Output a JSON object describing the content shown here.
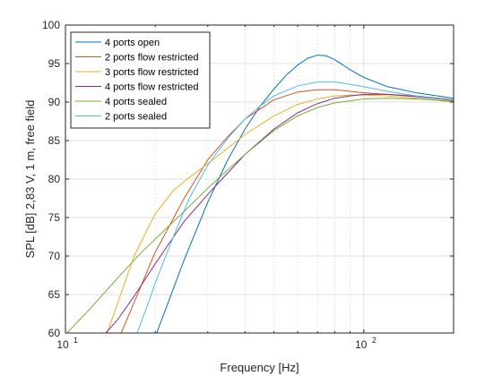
{
  "chart_data": {
    "type": "line",
    "title": "",
    "xlabel": "Frequency [Hz]",
    "ylabel": "SPL [dB] 2,83 V, 1 m, free field",
    "x_scale": "log",
    "xlim": [
      10,
      200
    ],
    "ylim": [
      60,
      100
    ],
    "x_ticks": [
      {
        "value": 10,
        "base": "10",
        "exp": "1"
      },
      {
        "value": 100,
        "base": "10",
        "exp": "2"
      }
    ],
    "y_ticks": [
      "60",
      "65",
      "70",
      "75",
      "80",
      "85",
      "90",
      "95",
      "100"
    ],
    "grid": "on (log minor grid on x)",
    "legend_position": "top-left",
    "series": [
      {
        "name": "4 ports open",
        "color": "#0072BD",
        "x": [
          20,
          25,
          30,
          35,
          40,
          45,
          50,
          55,
          60,
          65,
          70,
          75,
          80,
          90,
          100,
          120,
          150,
          200
        ],
        "y": [
          59.5,
          69.5,
          77.0,
          82.5,
          86.5,
          89.5,
          91.7,
          93.5,
          94.8,
          95.7,
          96.1,
          96.0,
          95.5,
          94.2,
          93.2,
          92.0,
          91.2,
          90.5
        ]
      },
      {
        "name": "2 ports flow restricted",
        "color": "#D95319",
        "x": [
          15,
          17,
          20,
          25,
          30,
          35,
          40,
          50,
          60,
          70,
          80,
          90,
          100,
          120,
          150,
          200
        ],
        "y": [
          59.0,
          64.0,
          70.5,
          77.5,
          82.5,
          85.5,
          87.8,
          90.3,
          91.3,
          91.6,
          91.6,
          91.4,
          91.2,
          91.0,
          90.8,
          90.3
        ]
      },
      {
        "name": "3 ports flow restricted",
        "color": "#EDB120",
        "x": [
          13.5,
          15,
          17,
          20,
          23,
          26,
          30,
          35,
          40,
          50,
          60,
          70,
          80,
          90,
          100,
          120,
          150,
          200
        ],
        "y": [
          59.0,
          64.0,
          70.0,
          75.5,
          78.5,
          80.2,
          82.0,
          84.0,
          85.8,
          88.2,
          89.7,
          90.4,
          90.8,
          90.9,
          90.9,
          90.8,
          90.5,
          90.0
        ]
      },
      {
        "name": "4 ports flow restricted",
        "color": "#7E2F8E",
        "x": [
          13.5,
          15,
          17,
          20,
          25,
          30,
          35,
          40,
          50,
          60,
          70,
          80,
          90,
          100,
          120,
          150,
          200
        ],
        "y": [
          59.8,
          61.8,
          64.8,
          69.0,
          74.5,
          78.0,
          80.8,
          83.2,
          86.5,
          88.6,
          89.8,
          90.5,
          90.8,
          91.0,
          91.0,
          90.7,
          90.2
        ]
      },
      {
        "name": "4 ports sealed",
        "color": "#77AC30",
        "x": [
          10,
          12,
          15,
          18,
          20,
          25,
          30,
          35,
          40,
          50,
          60,
          70,
          80,
          100,
          120,
          150,
          200
        ],
        "y": [
          59.8,
          63.0,
          67.2,
          70.5,
          72.2,
          75.8,
          78.8,
          81.2,
          83.2,
          86.3,
          88.2,
          89.3,
          89.9,
          90.4,
          90.5,
          90.4,
          90.1
        ]
      },
      {
        "name": "2 ports sealed",
        "color": "#4DBEEE",
        "x": [
          17,
          19,
          20,
          23,
          26,
          30,
          35,
          40,
          45,
          50,
          60,
          70,
          80,
          90,
          100,
          120,
          150,
          200
        ],
        "y": [
          59.0,
          64.0,
          66.5,
          72.5,
          77.5,
          81.8,
          85.3,
          87.8,
          89.5,
          90.8,
          92.1,
          92.6,
          92.6,
          92.3,
          92.0,
          91.4,
          90.8,
          90.2
        ]
      }
    ]
  }
}
